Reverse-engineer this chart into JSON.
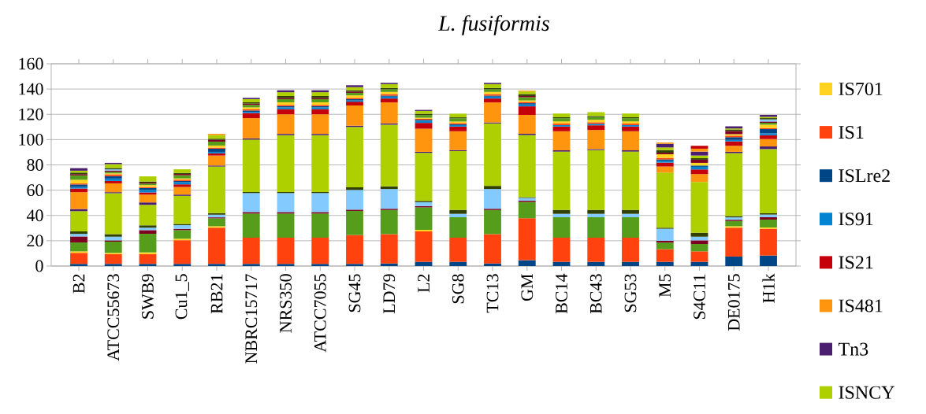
{
  "chart_data": {
    "type": "bar",
    "title": "L. fusiformis",
    "stacked": true,
    "grid": "y",
    "legend": "right",
    "categories": [
      "B2",
      "ATCC55673",
      "SWB9",
      "Cu1_5",
      "RB21",
      "NBRC15717",
      "NRS350",
      "ATCC7055",
      "SG45",
      "LD79",
      "L2",
      "SG8",
      "TC13",
      "GM",
      "BC14",
      "BC43",
      "SG53",
      "M5",
      "S4C11",
      "DE0175",
      "H1k"
    ],
    "ylim": [
      0,
      160
    ],
    "yticks": [
      0,
      20,
      40,
      60,
      80,
      100,
      120,
      140,
      160
    ],
    "series": [
      {
        "color": "#004586",
        "values": [
          1.7,
          1.7,
          1.7,
          1.7,
          1.7,
          1.7,
          1.7,
          1.7,
          1.7,
          2,
          3.3,
          3.3,
          2,
          4.6,
          3.3,
          3.3,
          3.3,
          3.3,
          3.3,
          7.5,
          8.3
        ]
      },
      {
        "color": "#ff420e",
        "values": [
          8.7,
          7.7,
          7.7,
          18.7,
          28.6,
          20.7,
          20.7,
          20.7,
          22.8,
          23.2,
          24.1,
          19.1,
          23.2,
          33.2,
          19.1,
          19.1,
          19.1,
          10,
          8.3,
          22.8,
          21.2
        ]
      },
      {
        "color": "#ffd320",
        "values": [
          1.2,
          1,
          1.4,
          1.2,
          1.2,
          null,
          null,
          null,
          null,
          null,
          1.2,
          null,
          null,
          null,
          null,
          null,
          null,
          null,
          null,
          1.2,
          1
        ]
      },
      {
        "color": "#579d1c",
        "values": [
          7,
          8.9,
          14.7,
          6.8,
          6.2,
          19.1,
          19.1,
          19.1,
          19.1,
          19.1,
          17.8,
          16.2,
          19.1,
          12.9,
          16.2,
          16.2,
          16.2,
          5.2,
          5.8,
          4.1,
          6.2
        ]
      },
      {
        "color": "#7e0021",
        "values": [
          4.8,
          1,
          2.9,
          1,
          0.8,
          1.2,
          1.2,
          1.2,
          1,
          1,
          1,
          null,
          1,
          1,
          null,
          null,
          null,
          1.5,
          2.9,
          1,
          1.9
        ]
      },
      {
        "color": "#83caff",
        "values": [
          2,
          2.9,
          1.9,
          2.9,
          2.1,
          15,
          15,
          15,
          15.6,
          15.6,
          3.1,
          2.7,
          15.6,
          2.1,
          2.7,
          2.7,
          2.7,
          9.5,
          2.9,
          1.9,
          2.1
        ]
      },
      {
        "color": "#314004",
        "values": [
          2,
          2,
          1.9,
          1,
          1.2,
          0.8,
          0.8,
          0.8,
          2.1,
          2.1,
          1,
          3.1,
          2.5,
          0.6,
          3.1,
          3.1,
          3.1,
          0.8,
          3.1,
          1,
          1
        ]
      },
      {
        "name": "ISNCY",
        "color": "#aecf00",
        "values": [
          16,
          32.4,
          16.2,
          22.2,
          36.9,
          41.5,
          45,
          45,
          47.7,
          48.8,
          38,
          46.5,
          49.4,
          49.2,
          46.1,
          47.3,
          46.1,
          43.6,
          40.2,
          49.8,
          50.8
        ]
      },
      {
        "name": "Tn3",
        "color": "#4b1f6f",
        "values": [
          1.7,
          0.8,
          1.9,
          1,
          0.8,
          1,
          1,
          1,
          1,
          1,
          0.8,
          0.8,
          0.8,
          1,
          1,
          0.8,
          1,
          null,
          null,
          1,
          2.1
        ]
      },
      {
        "name": "IS481",
        "color": "#ff950e",
        "values": [
          13.3,
          7,
          6.2,
          6,
          7.9,
          16,
          15.5,
          15.5,
          16,
          16.6,
          18.3,
          14.9,
          15.8,
          14.9,
          15.1,
          15.1,
          15.1,
          4.8,
          6.2,
          4.8,
          5.8
        ]
      },
      {
        "name": "IS21",
        "color": "#c5000b",
        "values": [
          2.9,
          1.9,
          1.7,
          2.1,
          1.7,
          4,
          4,
          4,
          3,
          3.1,
          4.6,
          3.7,
          3.1,
          6.8,
          3.7,
          3.7,
          3.7,
          3.1,
          3.7,
          3.5,
          3.1
        ]
      },
      {
        "name": "IS91",
        "color": "#0084d1",
        "values": [
          1.2,
          1.9,
          2,
          1.7,
          1.2,
          1,
          1.5,
          1.5,
          1,
          1.5,
          1.7,
          1.2,
          1.5,
          1.5,
          1.2,
          1.2,
          1.2,
          1.5,
          2.1,
          1.2,
          1.5
        ]
      },
      {
        "name": "ISLre2",
        "color": "#004586",
        "values": [
          2,
          1.9,
          1.5,
          1,
          2.5,
          1,
          1,
          1,
          1,
          0.8,
          0.8,
          0.6,
          0.8,
          1,
          null,
          null,
          null,
          1,
          1,
          2.1,
          3.3
        ]
      },
      {
        "name": "IS1",
        "color": "#ff420e",
        "values": [
          0.8,
          1.4,
          0.8,
          1,
          0.8,
          1,
          1,
          1,
          1,
          1.2,
          0.8,
          1,
          1.2,
          1,
          1.2,
          1.2,
          1.2,
          1.2,
          null,
          1.2,
          0.8
        ]
      },
      {
        "name": "IS701",
        "color": "#ffd320",
        "values": [
          2.9,
          0.8,
          1.5,
          1,
          1.7,
          1.5,
          2,
          2,
          2,
          1.7,
          0.8,
          1.2,
          1.7,
          1.2,
          1.7,
          2,
          1.7,
          2.9,
          2.1,
          1.2,
          2.7
        ]
      },
      {
        "color": "#579d1c",
        "values": [
          3.5,
          1.2,
          1.2,
          2.5,
          3.1,
          2,
          2.5,
          2.5,
          2,
          2.1,
          2.1,
          2.5,
          2.1,
          2.5,
          2.5,
          2.1,
          2.5,
          null,
          null,
          null,
          1.5
        ]
      },
      {
        "color": "#7e0021",
        "values": [
          1,
          1,
          0.8,
          1,
          1.5,
          1,
          1,
          1,
          1,
          null,
          null,
          null,
          null,
          1,
          null,
          null,
          null,
          1.2,
          2.5,
          2.5,
          1
        ]
      },
      {
        "color": "#83caff",
        "values": [
          null,
          1,
          null,
          null,
          null,
          null,
          null,
          null,
          null,
          null,
          null,
          null,
          null,
          null,
          null,
          null,
          null,
          null,
          null,
          null,
          1.7
        ]
      },
      {
        "color": "#314004",
        "values": [
          1.2,
          1,
          0.8,
          0.8,
          0.8,
          1,
          1.5,
          1.5,
          1,
          1,
          1,
          0.8,
          1,
          1.5,
          0.8,
          0.8,
          0.8,
          2.1,
          1.2,
          1.2,
          1
        ]
      },
      {
        "color": "#aecf00",
        "values": [
          1.5,
          3.1,
          4.1,
          2.9,
          2.9,
          2.5,
          3,
          3,
          2.5,
          3.1,
          2.3,
          2.9,
          3.1,
          2.1,
          2.9,
          3.1,
          2.9,
          2.1,
          2.1,
          0.8,
          1
        ]
      },
      {
        "color": "#4b1f6f",
        "values": [
          2,
          1,
          null,
          null,
          null,
          1,
          1.5,
          1.5,
          1.5,
          1,
          0.8,
          null,
          1,
          null,
          null,
          null,
          null,
          2.9,
          3.1,
          1.7,
          1.5
        ]
      },
      {
        "color": "#ff950e",
        "values": [
          null,
          null,
          null,
          null,
          1,
          null,
          null,
          null,
          null,
          null,
          null,
          null,
          null,
          0.6,
          null,
          null,
          null,
          1,
          2.3,
          null,
          null
        ]
      },
      {
        "color": "#c5000b",
        "values": [
          null,
          null,
          null,
          null,
          null,
          null,
          null,
          null,
          null,
          null,
          null,
          null,
          null,
          null,
          null,
          null,
          null,
          null,
          2.3,
          null,
          null
        ]
      }
    ]
  }
}
